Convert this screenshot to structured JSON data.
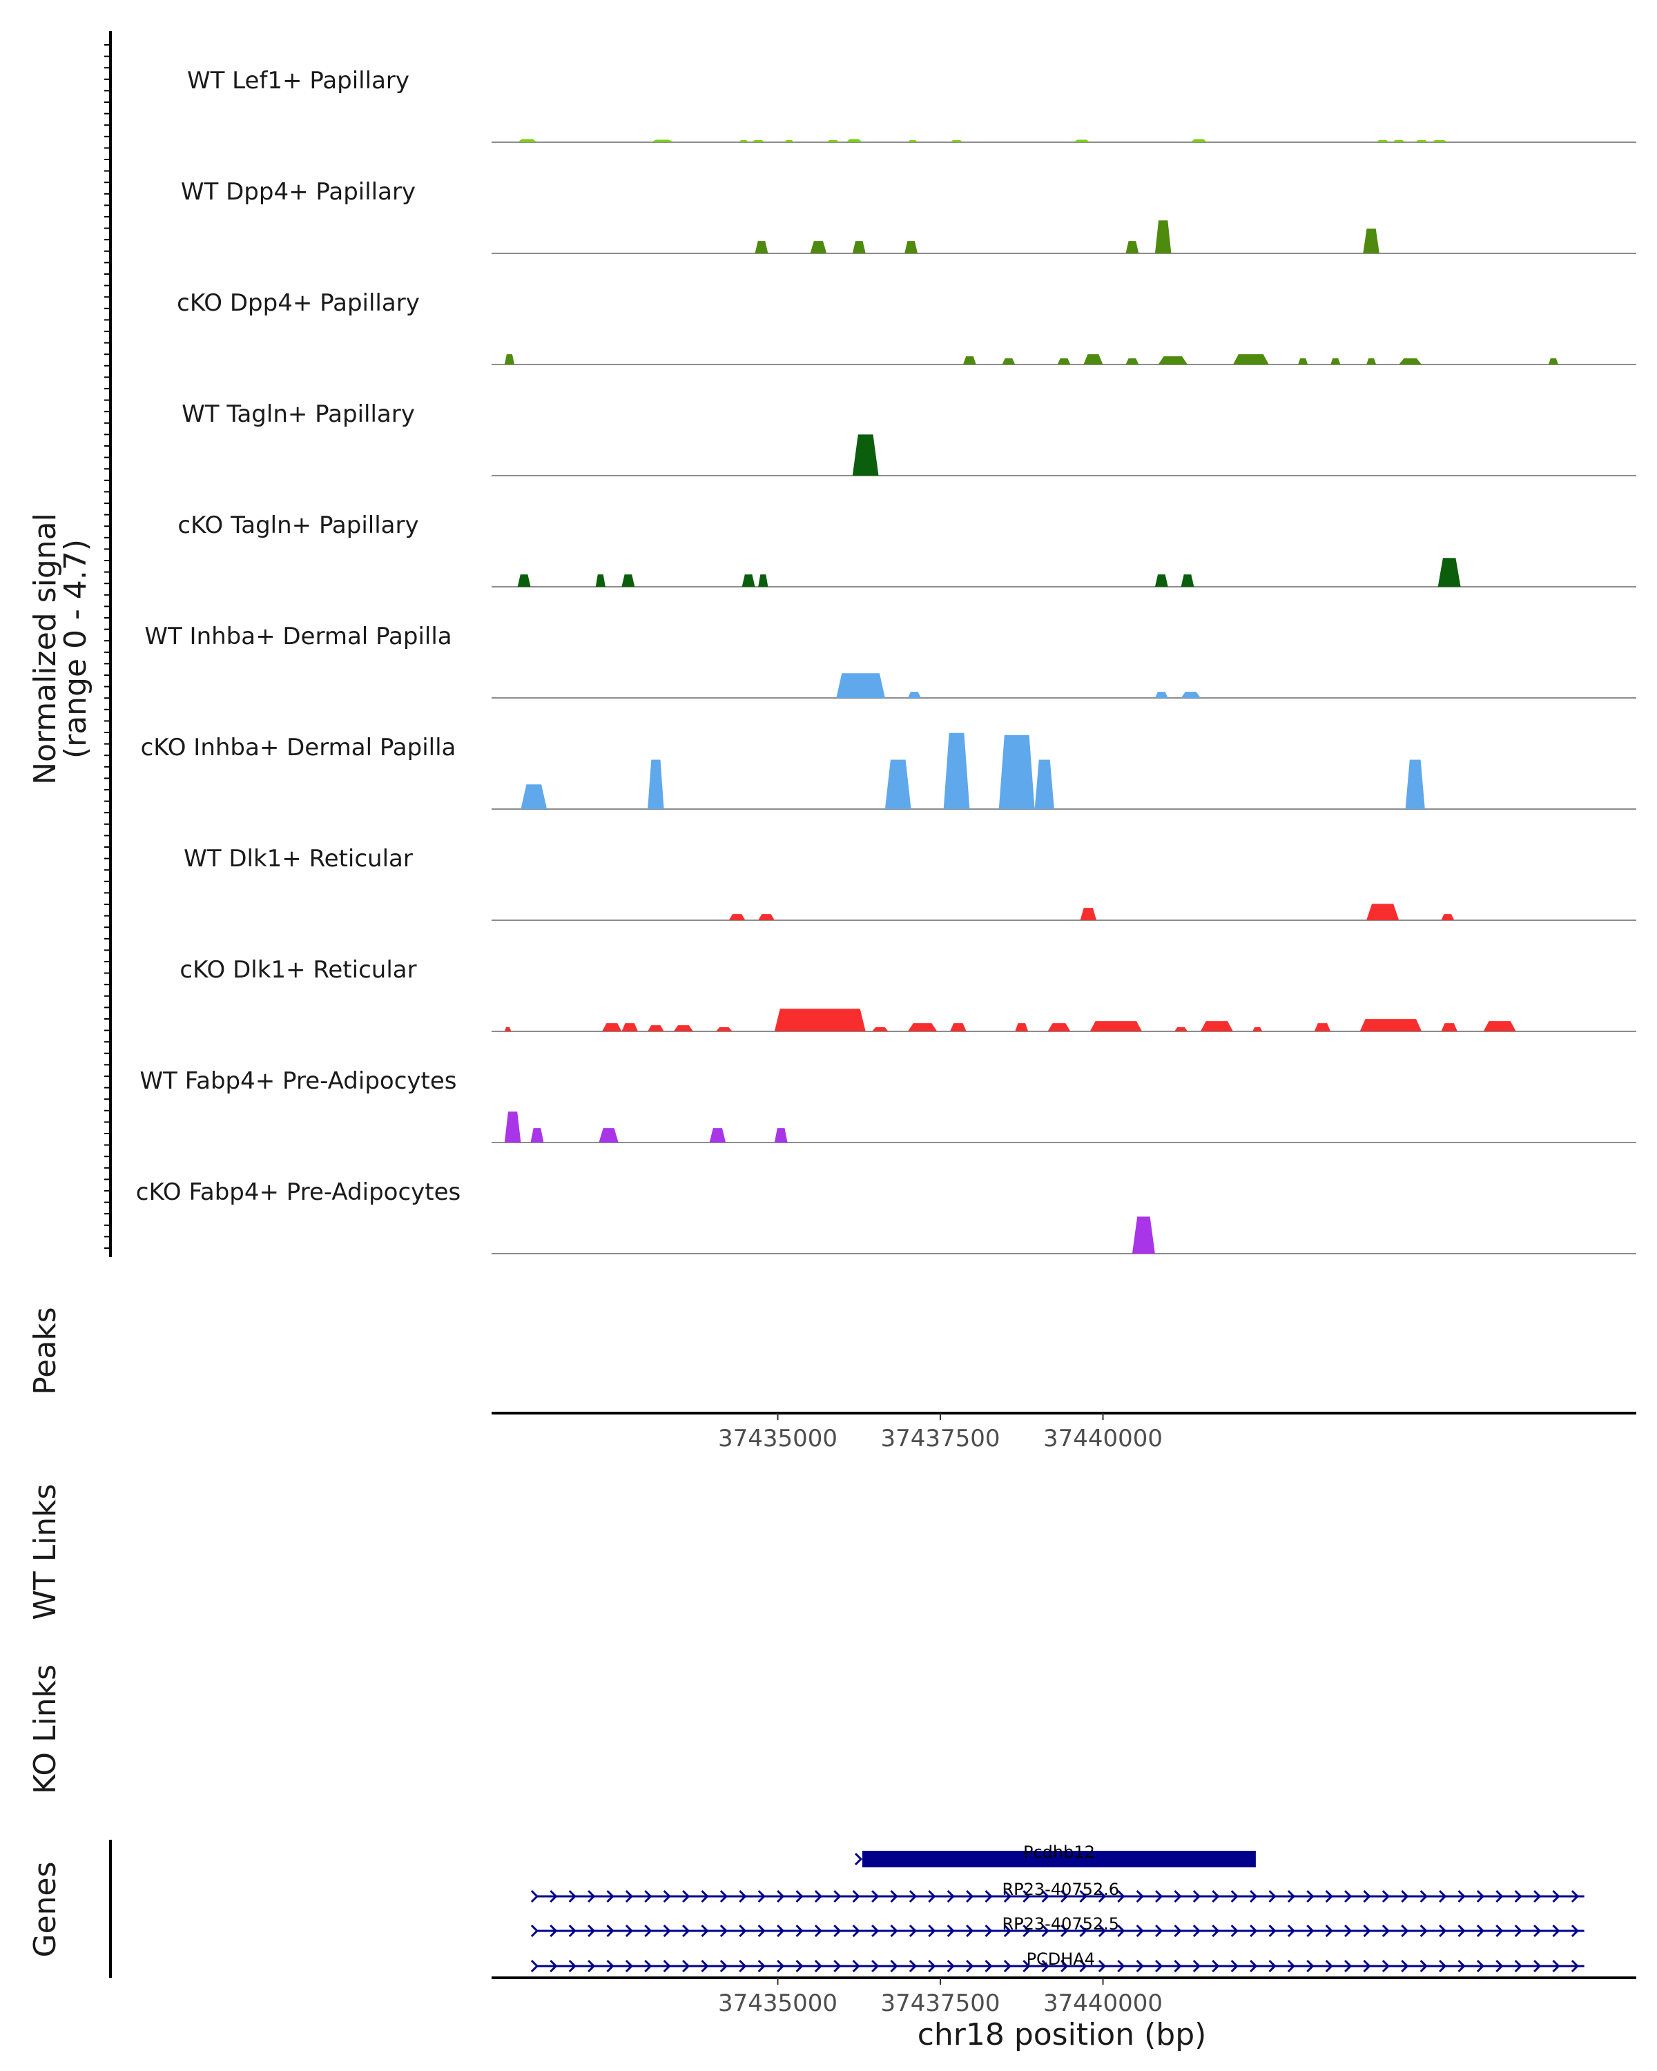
{
  "chart_data": [
    {
      "type": "area",
      "title": "",
      "ylabel_line1": "Normalized signal",
      "ylabel_line2": "(range 0 - 4.7)",
      "ylim": [
        0,
        4.7
      ],
      "xlim": [
        37430600,
        37448200
      ],
      "tracks": [
        {
          "name": "WT Lef1+ Papillary",
          "color": "#7CCD1A",
          "peaks": [
            [
              37431000,
              37431300,
              0.15
            ],
            [
              37433050,
              37433400,
              0.12
            ],
            [
              37434400,
              37434550,
              0.1
            ],
            [
              37434600,
              37434800,
              0.1
            ],
            [
              37435100,
              37435250,
              0.1
            ],
            [
              37435750,
              37435950,
              0.1
            ],
            [
              37436050,
              37436300,
              0.15
            ],
            [
              37437000,
              37437150,
              0.1
            ],
            [
              37437650,
              37437850,
              0.1
            ],
            [
              37439550,
              37439800,
              0.12
            ],
            [
              37441350,
              37441600,
              0.15
            ],
            [
              37444200,
              37444400,
              0.1
            ],
            [
              37444450,
              37444650,
              0.1
            ],
            [
              37444800,
              37445000,
              0.1
            ],
            [
              37445050,
              37445300,
              0.1
            ]
          ]
        },
        {
          "name": "WT Dpp4+ Papillary",
          "color": "#4E8A0E",
          "peaks": [
            [
              37434650,
              37434850,
              0.6
            ],
            [
              37435500,
              37435750,
              0.6
            ],
            [
              37436150,
              37436350,
              0.6
            ],
            [
              37436950,
              37437150,
              0.6
            ],
            [
              37440350,
              37440550,
              0.6
            ],
            [
              37440800,
              37441050,
              1.6
            ],
            [
              37444000,
              37444250,
              1.2
            ]
          ]
        },
        {
          "name": "cKO Dpp4+ Papillary",
          "color": "#4E8A0E",
          "peaks": [
            [
              37430800,
              37430950,
              0.5
            ],
            [
              37437850,
              37438050,
              0.4
            ],
            [
              37438450,
              37438650,
              0.3
            ],
            [
              37439300,
              37439500,
              0.3
            ],
            [
              37439700,
              37440000,
              0.5
            ],
            [
              37440350,
              37440550,
              0.3
            ],
            [
              37440850,
              37441300,
              0.4
            ],
            [
              37442000,
              37442550,
              0.5
            ],
            [
              37443000,
              37443150,
              0.3
            ],
            [
              37443500,
              37443650,
              0.3
            ],
            [
              37444050,
              37444200,
              0.3
            ],
            [
              37444550,
              37444900,
              0.3
            ],
            [
              37446850,
              37447000,
              0.3
            ]
          ]
        },
        {
          "name": "WT Tagln+ Papillary",
          "color": "#0B5E0B",
          "peaks": [
            [
              37436150,
              37436550,
              2.0
            ]
          ]
        },
        {
          "name": "cKO Tagln+ Papillary",
          "color": "#0B5E0B",
          "peaks": [
            [
              37431000,
              37431200,
              0.6
            ],
            [
              37432200,
              37432350,
              0.6
            ],
            [
              37432600,
              37432800,
              0.6
            ],
            [
              37434450,
              37434650,
              0.6
            ],
            [
              37434700,
              37434850,
              0.6
            ],
            [
              37440800,
              37441000,
              0.6
            ],
            [
              37441200,
              37441400,
              0.6
            ],
            [
              37445150,
              37445500,
              1.4
            ]
          ]
        },
        {
          "name": "WT Inhba+ Dermal Papilla",
          "color": "#5FA8EC",
          "peaks": [
            [
              37435900,
              37436650,
              1.2
            ],
            [
              37437000,
              37437200,
              0.3
            ],
            [
              37440800,
              37441000,
              0.3
            ],
            [
              37441200,
              37441500,
              0.3
            ]
          ]
        },
        {
          "name": "cKO Inhba+ Dermal Papilla",
          "color": "#5FA8EC",
          "peaks": [
            [
              37431050,
              37431450,
              1.2
            ],
            [
              37433000,
              37433250,
              2.4
            ],
            [
              37436650,
              37437050,
              2.4
            ],
            [
              37437550,
              37437950,
              3.7
            ],
            [
              37438400,
              37438950,
              3.6
            ],
            [
              37438950,
              37439250,
              2.4
            ],
            [
              37444650,
              37444950,
              2.4
            ]
          ]
        },
        {
          "name": "WT Dlk1+ Reticular",
          "color": "#F82E2E",
          "peaks": [
            [
              37434250,
              37434500,
              0.3
            ],
            [
              37434700,
              37434950,
              0.3
            ],
            [
              37439650,
              37439900,
              0.6
            ],
            [
              37444050,
              37444550,
              0.8
            ],
            [
              37445200,
              37445400,
              0.3
            ]
          ]
        },
        {
          "name": "cKO Dlk1+ Reticular",
          "color": "#F82E2E",
          "peaks": [
            [
              37430800,
              37430900,
              0.2
            ],
            [
              37432300,
              37432600,
              0.4
            ],
            [
              37432600,
              37432850,
              0.4
            ],
            [
              37433000,
              37433250,
              0.3
            ],
            [
              37433400,
              37433700,
              0.3
            ],
            [
              37434050,
              37434300,
              0.2
            ],
            [
              37434950,
              37436350,
              1.1
            ],
            [
              37436450,
              37436700,
              0.2
            ],
            [
              37437000,
              37437450,
              0.4
            ],
            [
              37437650,
              37437900,
              0.4
            ],
            [
              37438650,
              37438850,
              0.4
            ],
            [
              37439150,
              37439500,
              0.4
            ],
            [
              37439800,
              37440600,
              0.5
            ],
            [
              37441100,
              37441300,
              0.2
            ],
            [
              37441500,
              37442000,
              0.5
            ],
            [
              37442300,
              37442450,
              0.2
            ],
            [
              37443250,
              37443500,
              0.4
            ],
            [
              37443950,
              37444900,
              0.6
            ],
            [
              37445200,
              37445450,
              0.4
            ],
            [
              37445850,
              37446350,
              0.5
            ]
          ]
        },
        {
          "name": "WT Fabp4+ Pre-Adipocytes",
          "color": "#A935E8",
          "peaks": [
            [
              37430800,
              37431050,
              1.5
            ],
            [
              37431200,
              37431400,
              0.7
            ],
            [
              37432250,
              37432550,
              0.7
            ],
            [
              37433950,
              37434200,
              0.7
            ],
            [
              37434950,
              37435150,
              0.7
            ]
          ]
        },
        {
          "name": "cKO Fabp4+ Pre-Adipocytes",
          "color": "#A935E8",
          "peaks": [
            [
              37440450,
              37440800,
              1.8
            ]
          ]
        }
      ]
    },
    {
      "type": "track",
      "ylabel": "Peaks",
      "xlim": [
        37430600,
        37448200
      ],
      "x_ticks": [
        37435000,
        37437500,
        37440000
      ],
      "x_tick_labels": [
        "37435000",
        "37437500",
        "37440000"
      ]
    },
    {
      "type": "track",
      "ylabel": "WT Links"
    },
    {
      "type": "track",
      "ylabel": "KO Links"
    },
    {
      "type": "track",
      "ylabel": "Genes",
      "xlabel": "chr18 position (bp)",
      "xlim": [
        37430600,
        37448200
      ],
      "x_ticks": [
        37435000,
        37437500,
        37440000
      ],
      "x_tick_labels": [
        "37435000",
        "37437500",
        "37440000"
      ],
      "genes": [
        {
          "name": "Pcdhb12",
          "start": 37436300,
          "end": 37442350,
          "strand": "+",
          "style": "thick"
        },
        {
          "name": "RP23-40752.6",
          "start": 37431300,
          "end": 37447400,
          "strand": "+",
          "style": "thin"
        },
        {
          "name": "RP23-40752.5",
          "start": 37431300,
          "end": 37447400,
          "strand": "+",
          "style": "thin"
        },
        {
          "name": "PCDHA4",
          "start": 37431300,
          "end": 37447400,
          "strand": "+",
          "style": "thin"
        }
      ],
      "gene_color": "#00008B"
    }
  ]
}
